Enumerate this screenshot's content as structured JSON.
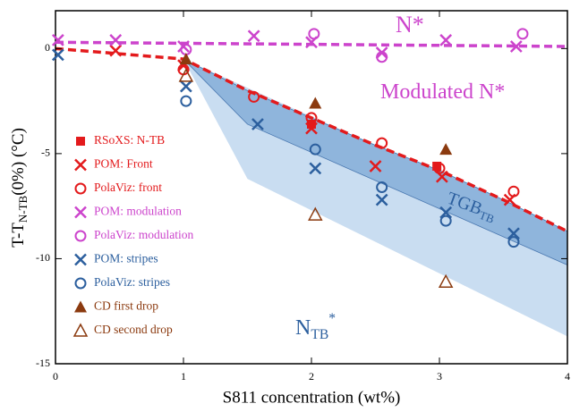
{
  "chart_data": {
    "type": "scatter",
    "xlabel": "S811 concentration (wt%)",
    "ylabel": {
      "main": "T-T",
      "sub": "N-TB",
      "rest": "(0%) (°C)"
    },
    "xlim": [
      0,
      4
    ],
    "ylim": [
      -15,
      1.8
    ],
    "xticks": [
      0,
      1,
      2,
      3,
      4
    ],
    "yticks": [
      0,
      -5,
      -10,
      -15
    ],
    "regions": [
      {
        "color": "#c9ddf1",
        "x": [
          1,
          4,
          4,
          1.5
        ],
        "values": [
          -0.5,
          -8.7,
          -13.7,
          -6.2
        ]
      },
      {
        "color": "#8fb5dc",
        "x": [
          1,
          1.5,
          2,
          2.5,
          3,
          3.5,
          4,
          4,
          1.5
        ],
        "values": [
          -0.5,
          -2.0,
          -3.3,
          -4.6,
          -5.8,
          -7.2,
          -8.7,
          -10.3,
          -3.6
        ]
      }
    ],
    "lines": [
      {
        "color": "#cc44cc",
        "x": [
          0,
          4
        ],
        "values": [
          0.3,
          0.1
        ]
      },
      {
        "color": "#e31a1c",
        "x": [
          0,
          1,
          1.5,
          2,
          2.5,
          3,
          3.5,
          4
        ],
        "values": [
          0,
          -0.5,
          -2.0,
          -3.3,
          -4.6,
          -5.8,
          -7.2,
          -8.7
        ]
      }
    ],
    "series": [
      {
        "name": "RSoXS: N-TB",
        "color": "#e31a1c",
        "marker": "square",
        "x": [
          2.0,
          2.98
        ],
        "values": [
          -3.6,
          -5.6
        ]
      },
      {
        "name": "POM: Front",
        "color": "#e31a1c",
        "marker": "x",
        "x": [
          0.47,
          1.0,
          2.0,
          2.5,
          3.02,
          3.55
        ],
        "values": [
          -0.1,
          -0.8,
          -3.8,
          -5.6,
          -6.1,
          -7.2
        ]
      },
      {
        "name": "PolaViz: front",
        "color": "#e31a1c",
        "marker": "circle",
        "x": [
          1.0,
          1.55,
          2.0,
          2.55,
          3.0,
          3.58
        ],
        "values": [
          -1.0,
          -2.3,
          -3.3,
          -4.5,
          -5.7,
          -6.8
        ]
      },
      {
        "name": "POM: modulation",
        "color": "#cc44cc",
        "marker": "x",
        "x": [
          0.02,
          0.47,
          1.0,
          1.55,
          2.0,
          2.55,
          3.05,
          3.6
        ],
        "values": [
          0.4,
          0.4,
          0.1,
          0.6,
          0.3,
          -0.2,
          0.4,
          0.1
        ]
      },
      {
        "name": "PolaViz: modulation",
        "color": "#cc44cc",
        "marker": "circle",
        "x": [
          1.02,
          2.02,
          2.55,
          3.65
        ],
        "values": [
          -0.05,
          0.7,
          -0.4,
          0.7
        ]
      },
      {
        "name": "POM: stripes",
        "color": "#2c5f9e",
        "marker": "x",
        "x": [
          0.02,
          1.02,
          1.58,
          2.03,
          2.55,
          3.05,
          3.58
        ],
        "values": [
          -0.3,
          -1.8,
          -3.6,
          -5.7,
          -7.2,
          -7.8,
          -8.8
        ]
      },
      {
        "name": "PolaViz: stripes",
        "color": "#2c5f9e",
        "marker": "circle",
        "x": [
          1.02,
          2.03,
          2.55,
          3.05,
          3.58
        ],
        "values": [
          -2.5,
          -4.8,
          -6.6,
          -8.2,
          -9.2
        ]
      },
      {
        "name": "CD first drop",
        "color": "#8b3a0f",
        "marker": "triangle",
        "x": [
          1.02,
          2.03,
          3.05
        ],
        "values": [
          -0.5,
          -2.6,
          -4.8
        ]
      },
      {
        "name": "CD second drop",
        "color": "#8b3a0f",
        "marker": "triangle-open",
        "x": [
          1.02,
          2.03,
          3.05
        ],
        "values": [
          -1.3,
          -7.9,
          -11.1
        ]
      }
    ],
    "annotations": [
      {
        "text": "N*",
        "color": "#cc44cc"
      },
      {
        "text": "Modulated N*",
        "color": "#cc44cc"
      },
      {
        "text": "TGB",
        "sub": "TB",
        "color": "#2c5f9e"
      },
      {
        "text": "N",
        "sub": "TB",
        "sup": "*",
        "color": "#2c5f9e"
      }
    ]
  }
}
